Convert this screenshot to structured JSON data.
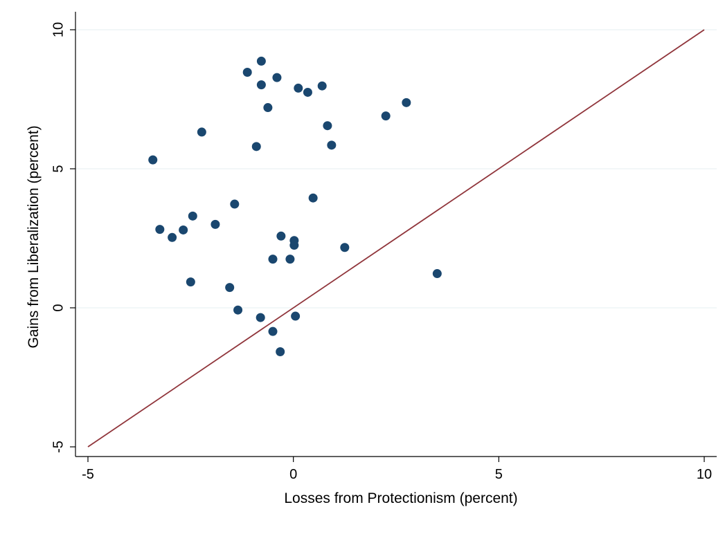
{
  "chart_data": {
    "type": "scatter",
    "title": "",
    "xlabel": "Losses from Protectionism (percent)",
    "ylabel": "Gains from Liberalization (percent)",
    "xlim": [
      -5,
      10
    ],
    "ylim": [
      -5,
      10
    ],
    "xticks": [
      "-5",
      "0",
      "5",
      "10"
    ],
    "yticks": [
      "-5",
      "0",
      "5",
      "10"
    ],
    "grid": "horizontal",
    "legend": "none",
    "colors": {
      "points": "#1a476f",
      "reference_line": "#90353b",
      "grid": "#eaf2f3",
      "frame": "#000000"
    },
    "series": [
      {
        "marker": "circle",
        "points": [
          [
            -3.42,
            5.32
          ],
          [
            -3.25,
            2.82
          ],
          [
            -2.95,
            2.53
          ],
          [
            -2.68,
            2.8
          ],
          [
            -2.45,
            3.3
          ],
          [
            -2.5,
            0.93
          ],
          [
            -2.23,
            6.32
          ],
          [
            -1.9,
            3.0
          ],
          [
            -1.55,
            0.73
          ],
          [
            -1.43,
            3.73
          ],
          [
            -1.35,
            -0.08
          ],
          [
            -1.12,
            8.47
          ],
          [
            -0.9,
            5.8
          ],
          [
            -0.8,
            -0.35
          ],
          [
            -0.78,
            8.02
          ],
          [
            -0.78,
            8.87
          ],
          [
            -0.62,
            7.2
          ],
          [
            -0.5,
            1.75
          ],
          [
            -0.5,
            -0.85
          ],
          [
            -0.4,
            8.28
          ],
          [
            -0.3,
            2.58
          ],
          [
            -0.32,
            -1.58
          ],
          [
            -0.08,
            1.75
          ],
          [
            0.02,
            2.42
          ],
          [
            0.02,
            2.25
          ],
          [
            0.05,
            -0.3
          ],
          [
            0.12,
            7.9
          ],
          [
            0.35,
            7.75
          ],
          [
            0.48,
            3.95
          ],
          [
            0.7,
            7.98
          ],
          [
            0.83,
            6.55
          ],
          [
            0.93,
            5.85
          ],
          [
            1.25,
            2.17
          ],
          [
            2.25,
            6.9
          ],
          [
            2.75,
            7.38
          ],
          [
            3.5,
            1.23
          ]
        ]
      }
    ],
    "reference_line": {
      "from": [
        -5,
        -5
      ],
      "to": [
        10,
        10
      ]
    }
  }
}
